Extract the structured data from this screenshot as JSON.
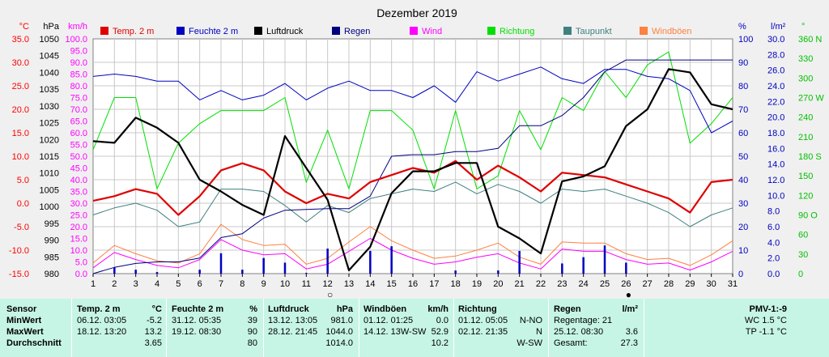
{
  "chart_data": {
    "type": "line",
    "title": "Dezember 2019",
    "x": [
      1,
      2,
      3,
      4,
      5,
      6,
      7,
      8,
      9,
      10,
      11,
      12,
      13,
      14,
      15,
      16,
      17,
      18,
      19,
      20,
      21,
      22,
      23,
      24,
      25,
      26,
      27,
      28,
      29,
      30,
      31
    ],
    "left_axes": [
      {
        "unit": "°C",
        "color": "#ff0000",
        "ticks": [
          "35.0",
          "30.0",
          "25.0",
          "20.0",
          "15.0",
          "10.0",
          "5.0",
          "0.0",
          "-5.0",
          "-10.0",
          "-15.0"
        ]
      },
      {
        "unit": "hPa",
        "color": "#000000",
        "ticks": [
          "1050",
          "1045",
          "1040",
          "1035",
          "1030",
          "1025",
          "1020",
          "1015",
          "1010",
          "1005",
          "1000",
          "995",
          "990",
          "985",
          "980"
        ]
      },
      {
        "unit": "km/h",
        "color": "#ff00ff",
        "ticks": [
          "100.0",
          "95.0",
          "90.0",
          "85.0",
          "80.0",
          "75.0",
          "70.0",
          "65.0",
          "60.0",
          "55.0",
          "50.0",
          "45.0",
          "40.0",
          "35.0",
          "30.0",
          "25.0",
          "20.0",
          "15.0",
          "10.0",
          "5.0",
          "0.0"
        ]
      }
    ],
    "right_axes": [
      {
        "unit": "%",
        "color": "#0000c0",
        "ticks": [
          "100",
          "90",
          "80",
          "70",
          "60",
          "50",
          "40",
          "30",
          "20",
          "10",
          "0"
        ]
      },
      {
        "unit": "l/m²",
        "color": "#0000c0",
        "ticks": [
          "30.0",
          "28.0",
          "26.0",
          "24.0",
          "22.0",
          "20.0",
          "18.0",
          "16.0",
          "14.0",
          "12.0",
          "10.0",
          "8.0",
          "6.0",
          "4.0",
          "2.0",
          "0.0"
        ]
      },
      {
        "unit": "°",
        "color": "#00c000",
        "ticks": [
          "360 N",
          "330",
          "300",
          "270 W",
          "240",
          "210",
          "180 S",
          "150",
          "120",
          "90 O",
          "60",
          "30",
          "0"
        ]
      }
    ],
    "moon_markers": [
      {
        "day": 12,
        "symbol": "○"
      },
      {
        "day": 26,
        "symbol": "●"
      }
    ],
    "series": [
      {
        "name": "Temp. 2 m",
        "color": "#e00000",
        "width": 2.2,
        "axis": "temp",
        "values": [
          0.5,
          1.5,
          3.0,
          2.0,
          -2.5,
          1.5,
          7.0,
          8.5,
          7.0,
          2.5,
          0.0,
          2.0,
          1.0,
          4.5,
          6.0,
          7.5,
          6.5,
          9.0,
          5.0,
          8.0,
          5.5,
          2.5,
          6.5,
          6.0,
          5.5,
          4.0,
          2.5,
          1.0,
          -2.0,
          4.5,
          5.0
        ]
      },
      {
        "name": "Feuchte 2 m",
        "color": "#0000c0",
        "width": 1,
        "axis": "hum",
        "values": [
          84,
          85,
          84,
          82,
          82,
          74,
          78,
          74,
          76,
          81,
          74,
          79,
          82,
          78,
          78,
          75,
          80,
          73,
          86,
          82,
          85,
          88,
          83,
          81,
          87,
          87,
          84,
          83,
          78,
          60,
          65
        ]
      },
      {
        "name": "Luftdruck",
        "color": "#000000",
        "width": 2.2,
        "axis": "press",
        "values": [
          1019.5,
          1019,
          1026.5,
          1023.5,
          1019,
          1008,
          1004.5,
          1000.5,
          997.5,
          1021,
          1011.5,
          1002,
          981,
          988,
          1004,
          1010.5,
          1010.5,
          1013,
          1013,
          994,
          990.5,
          986,
          1007.5,
          1009,
          1012,
          1024,
          1029,
          1041,
          1040,
          1030.5,
          1029
        ]
      },
      {
        "name": "Regen",
        "color": "#000080",
        "width": 1,
        "axis": "rain",
        "values": [
          0,
          0.8,
          1.3,
          1.5,
          1.5,
          2.0,
          4.6,
          5.1,
          7.1,
          8.1,
          8.2,
          8.3,
          8.3,
          9.9,
          15.0,
          15.2,
          15.2,
          15.6,
          15.6,
          16.0,
          18.9,
          18.9,
          20.2,
          22.5,
          25.8,
          27.3,
          27.3,
          27.3,
          27.3,
          27.3,
          27.3
        ]
      },
      {
        "name": "Regen Tag",
        "color": "#0000c0",
        "width": 2.5,
        "axis": "rain",
        "bars": true,
        "values": [
          0,
          0.8,
          0.5,
          0.2,
          0,
          0.5,
          2.6,
          0.5,
          2.0,
          1.4,
          0.1,
          3.2,
          0,
          2.9,
          3.5,
          0,
          0,
          0.4,
          0,
          0.4,
          2.9,
          0,
          1.3,
          2.1,
          3.6,
          1.4,
          0,
          0,
          0,
          0,
          0
        ]
      },
      {
        "name": "Wind",
        "color": "#ff00ff",
        "width": 1,
        "axis": "wind",
        "values": [
          2.5,
          9.0,
          6.0,
          3.5,
          2.5,
          6.0,
          14.5,
          10.0,
          8.0,
          8.5,
          2.0,
          4.0,
          9.5,
          15.0,
          10.0,
          6.5,
          4.0,
          5.0,
          7.0,
          8.5,
          4.5,
          2.0,
          10.5,
          9.5,
          9.5,
          6.0,
          4.0,
          4.5,
          1.5,
          5.0,
          9.5
        ]
      },
      {
        "name": "Richtung",
        "color": "#00e000",
        "width": 1,
        "axis": "dir",
        "values": [
          190,
          270,
          270,
          130,
          200,
          230,
          250,
          250,
          250,
          270,
          140,
          220,
          130,
          250,
          250,
          220,
          130,
          250,
          130,
          150,
          250,
          190,
          270,
          250,
          310,
          270,
          320,
          340,
          200,
          230,
          270
        ]
      },
      {
        "name": "Taupunkt",
        "color": "#408080",
        "width": 1,
        "axis": "temp",
        "values": [
          -2.5,
          -1.0,
          0.0,
          -1.5,
          -5.0,
          -4.0,
          3.0,
          3.0,
          2.5,
          -0.5,
          -4.0,
          -0.5,
          -2.0,
          1.0,
          2.0,
          3.0,
          2.5,
          4.5,
          2.0,
          4.0,
          2.5,
          0.0,
          3.0,
          2.5,
          3.0,
          1.5,
          0.0,
          -2.0,
          -5.0,
          -2.5,
          -1.0
        ]
      },
      {
        "name": "Windböen",
        "color": "#ff8040",
        "width": 1,
        "axis": "wind",
        "values": [
          4.5,
          12.0,
          8.5,
          5.5,
          4.5,
          8.5,
          21.0,
          14.5,
          12.0,
          12.5,
          4.0,
          6.5,
          13.5,
          20.0,
          14.0,
          10.0,
          6.5,
          7.5,
          10.0,
          13.0,
          7.0,
          4.0,
          13.5,
          13.0,
          13.0,
          8.5,
          6.0,
          6.5,
          3.5,
          8.0,
          14.0
        ]
      }
    ]
  },
  "table": {
    "sensor": {
      "header": "Sensor",
      "min": "MinWert",
      "max": "MaxWert",
      "avg": "Durchschnitt"
    },
    "temp": {
      "header": "Temp. 2 m",
      "unit": "°C",
      "min_time": "06.12.  03:05",
      "min_val": "-5.2",
      "max_time": "18.12.  13:20",
      "max_val": "13.2",
      "avg_val": "3.65"
    },
    "hum": {
      "header": "Feuchte  2 m",
      "unit": "%",
      "min_time": "31.12.  05:35",
      "min_val": "39",
      "max_time": "19.12.  08:30",
      "max_val": "90",
      "avg_val": "80"
    },
    "press": {
      "header": "Luftdruck",
      "unit": "hPa",
      "min_time": "13.12.  13:05",
      "min_val": "981.0",
      "max_time": "28.12.  21:45",
      "max_val": "1044.0",
      "avg_val": "1014.0"
    },
    "gust": {
      "header": "Windböen",
      "unit": "km/h",
      "min_time": "01.12.  01:25",
      "min_val": "0.0",
      "max_time": "14.12.  13W-SW",
      "max_val": "52.9",
      "avg_val": "10.2"
    },
    "dir": {
      "header": "Richtung",
      "min_time": "01.12.  05:05",
      "min_val": "N-NO",
      "max_time": "02.12.  21:35",
      "max_val": "N",
      "avg_val": "W-SW"
    },
    "rain": {
      "header": "Regen",
      "unit": "l/m²",
      "days_label": "Regentage: 21",
      "max_time": "25.12.  08:30",
      "max_val": "3.6",
      "total_label": "Gesamt:",
      "total_val": "27.3"
    },
    "pmv": {
      "header": "PMV-1:-9",
      "line1": "WC 1.5 °C",
      "line2": "TP -1.1 °C"
    }
  }
}
